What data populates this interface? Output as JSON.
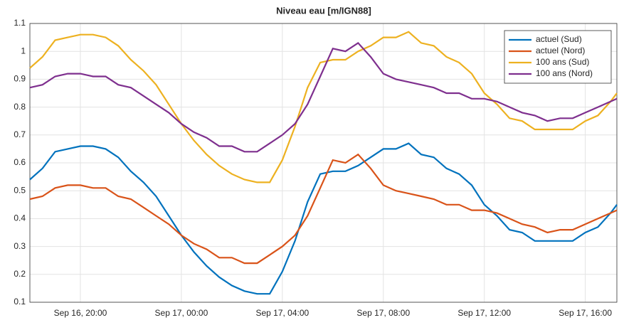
{
  "chart_data": {
    "type": "line",
    "title": "Niveau eau [m/IGN88]",
    "x": [
      "Sep 16, 18:00",
      "Sep 16, 18:30",
      "Sep 16, 19:00",
      "Sep 16, 19:30",
      "Sep 16, 20:00",
      "Sep 16, 20:30",
      "Sep 16, 21:00",
      "Sep 16, 21:30",
      "Sep 16, 22:00",
      "Sep 16, 22:30",
      "Sep 16, 23:00",
      "Sep 16, 23:30",
      "Sep 17, 00:00",
      "Sep 17, 00:30",
      "Sep 17, 01:00",
      "Sep 17, 01:30",
      "Sep 17, 02:00",
      "Sep 17, 02:30",
      "Sep 17, 03:00",
      "Sep 17, 03:30",
      "Sep 17, 04:00",
      "Sep 17, 04:30",
      "Sep 17, 05:00",
      "Sep 17, 05:30",
      "Sep 17, 06:00",
      "Sep 17, 06:30",
      "Sep 17, 07:00",
      "Sep 17, 07:30",
      "Sep 17, 08:00",
      "Sep 17, 08:30",
      "Sep 17, 09:00",
      "Sep 17, 09:30",
      "Sep 17, 10:00",
      "Sep 17, 10:30",
      "Sep 17, 11:00",
      "Sep 17, 11:30",
      "Sep 17, 12:00",
      "Sep 17, 12:30",
      "Sep 17, 13:00",
      "Sep 17, 13:30",
      "Sep 17, 14:00",
      "Sep 17, 14:30",
      "Sep 17, 15:00",
      "Sep 17, 15:30",
      "Sep 17, 16:00",
      "Sep 17, 16:30",
      "Sep 17, 17:00",
      "Sep 17, 17:15"
    ],
    "series": [
      {
        "name": "actuel (Sud)",
        "color": "#0072bd",
        "values": [
          0.54,
          0.58,
          0.64,
          0.65,
          0.66,
          0.66,
          0.65,
          0.62,
          0.57,
          0.53,
          0.48,
          0.41,
          0.34,
          0.28,
          0.23,
          0.19,
          0.16,
          0.14,
          0.13,
          0.13,
          0.21,
          0.32,
          0.46,
          0.56,
          0.57,
          0.57,
          0.59,
          0.62,
          0.65,
          0.65,
          0.67,
          0.63,
          0.62,
          0.58,
          0.56,
          0.52,
          0.45,
          0.41,
          0.36,
          0.35,
          0.32,
          0.32,
          0.32,
          0.32,
          0.35,
          0.37,
          0.42,
          0.45
        ]
      },
      {
        "name": "actuel (Nord)",
        "color": "#d95319",
        "values": [
          0.47,
          0.48,
          0.51,
          0.52,
          0.52,
          0.51,
          0.51,
          0.48,
          0.47,
          0.44,
          0.41,
          0.38,
          0.34,
          0.31,
          0.29,
          0.26,
          0.26,
          0.24,
          0.24,
          0.27,
          0.3,
          0.34,
          0.41,
          0.51,
          0.61,
          0.6,
          0.63,
          0.58,
          0.52,
          0.5,
          0.49,
          0.48,
          0.47,
          0.45,
          0.45,
          0.43,
          0.43,
          0.42,
          0.4,
          0.38,
          0.37,
          0.35,
          0.36,
          0.36,
          0.38,
          0.4,
          0.42,
          0.43
        ]
      },
      {
        "name": "100 ans (Sud)",
        "color": "#edb120",
        "values": [
          0.94,
          0.98,
          1.04,
          1.05,
          1.06,
          1.06,
          1.05,
          1.02,
          0.97,
          0.93,
          0.88,
          0.81,
          0.74,
          0.68,
          0.63,
          0.59,
          0.56,
          0.54,
          0.53,
          0.53,
          0.61,
          0.73,
          0.87,
          0.96,
          0.97,
          0.97,
          1.0,
          1.02,
          1.05,
          1.05,
          1.07,
          1.03,
          1.02,
          0.98,
          0.96,
          0.92,
          0.85,
          0.81,
          0.76,
          0.75,
          0.72,
          0.72,
          0.72,
          0.72,
          0.75,
          0.77,
          0.82,
          0.85
        ]
      },
      {
        "name": "100 ans (Nord)",
        "color": "#7e2f8e",
        "values": [
          0.87,
          0.88,
          0.91,
          0.92,
          0.92,
          0.91,
          0.91,
          0.88,
          0.87,
          0.84,
          0.81,
          0.78,
          0.74,
          0.71,
          0.69,
          0.66,
          0.66,
          0.64,
          0.64,
          0.67,
          0.7,
          0.74,
          0.81,
          0.91,
          1.01,
          1.0,
          1.03,
          0.98,
          0.92,
          0.9,
          0.89,
          0.88,
          0.87,
          0.85,
          0.85,
          0.83,
          0.83,
          0.82,
          0.8,
          0.78,
          0.77,
          0.75,
          0.76,
          0.76,
          0.78,
          0.8,
          0.82,
          0.83
        ]
      }
    ],
    "xlim": [
      "Sep 16, 18:00",
      "Sep 17, 17:15"
    ],
    "xticks": [
      "Sep 16, 20:00",
      "Sep 17, 00:00",
      "Sep 17, 04:00",
      "Sep 17, 08:00",
      "Sep 17, 12:00",
      "Sep 17, 16:00"
    ],
    "ylim": [
      0.1,
      1.1
    ],
    "yticks": [
      0.1,
      0.2,
      0.3,
      0.4,
      0.5,
      0.6,
      0.7,
      0.8,
      0.9,
      1,
      1.1
    ],
    "grid": true,
    "legend": "top-right"
  }
}
